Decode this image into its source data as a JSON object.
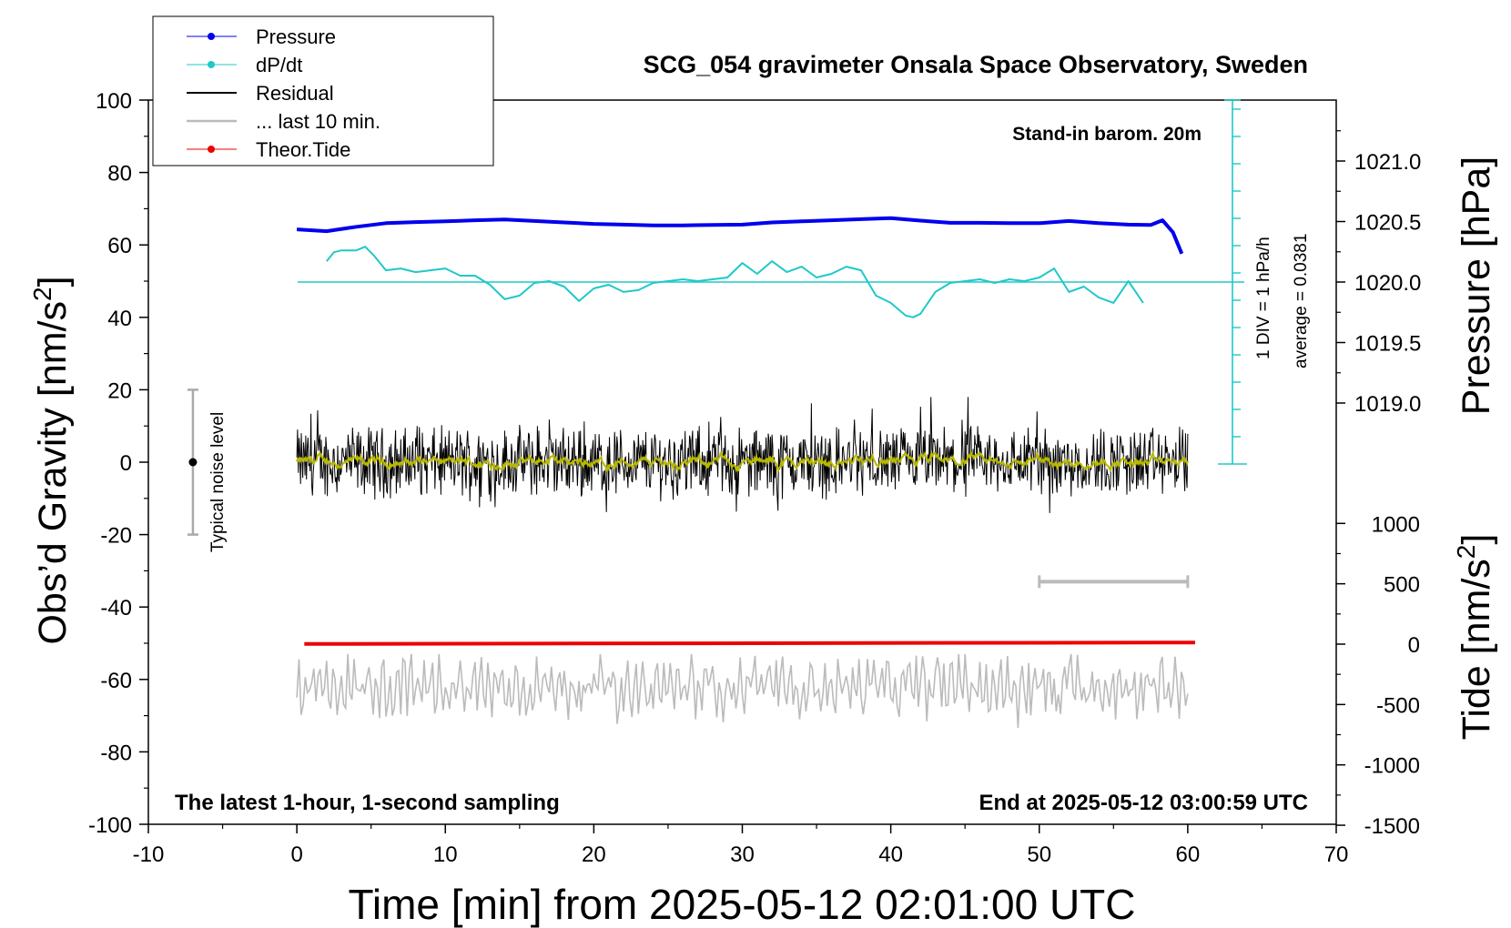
{
  "chart_data": {
    "type": "line",
    "title": "SCG_054 gravimeter Onsala Space Observatory, Sweden",
    "xlabel": "Time [min] from 2025-05-12 02:01:00 UTC",
    "ylabel_left": "Obs’d Gravity [nm/s",
    "ylabel_left_sup": "2",
    "ylabel_left_close": "]",
    "ylabel_right_pressure": "Pressure [hPa]",
    "ylabel_right_tide": "Tide [nm/s",
    "ylabel_right_tide_sup": "2",
    "ylabel_right_tide_close": "]",
    "xlim": [
      -10,
      70
    ],
    "ylim_left": [
      -100,
      100
    ],
    "x_ticks": [
      "-10",
      "0",
      "10",
      "20",
      "30",
      "40",
      "50",
      "60",
      "70"
    ],
    "y_ticks_left": [
      "-100",
      "-80",
      "-60",
      "-40",
      "-20",
      "0",
      "20",
      "40",
      "60",
      "80",
      "100"
    ],
    "pressure_ticks": [
      "1019.0",
      "1019.5",
      "1020.0",
      "1020.5",
      "1021.0"
    ],
    "tide_ticks": [
      "-1500",
      "-1000",
      "-500",
      "0",
      "500",
      "1000"
    ],
    "legend": {
      "placement": "top-left",
      "entries": [
        "Pressure",
        "dP/dt",
        "Residual",
        "... last 10 min.",
        "Theor.Tide"
      ]
    },
    "annotations": {
      "stand_in": "Stand-in barom. 20m",
      "latest": "The latest 1-hour, 1-second sampling",
      "end_at": "End at 2025-05-12 03:00:59 UTC",
      "div": "1 DIV = 1 hPa/h",
      "average": "average = 0.0381",
      "noise": "Typical noise level"
    },
    "colors": {
      "pressure": "#0000ee",
      "dpdt": "#20c8c8",
      "residual": "#000000",
      "residual_smooth": "#b8b800",
      "last10": "#bbbbbb",
      "tide": "#ee0000"
    },
    "series": [
      {
        "name": "Pressure",
        "x": [
          0,
          2,
          4,
          6,
          8,
          10,
          12,
          14,
          16,
          18,
          20,
          22,
          24,
          26,
          28,
          30,
          32,
          34,
          36,
          38,
          40,
          42,
          44,
          46,
          48,
          50,
          52,
          54,
          56,
          57.5,
          58.3,
          59,
          59.6
        ],
        "y": [
          64.3,
          63.8,
          65.0,
          66.0,
          66.3,
          66.5,
          66.8,
          67.0,
          66.6,
          66.2,
          65.8,
          65.6,
          65.4,
          65.4,
          65.5,
          65.6,
          66.2,
          66.5,
          66.8,
          67.1,
          67.4,
          66.7,
          66.1,
          66.1,
          66.0,
          66.0,
          66.6,
          66.0,
          65.6,
          65.5,
          66.8,
          63.5,
          57.6
        ]
      },
      {
        "name": "dP/dt",
        "x": [
          2,
          2.5,
          3,
          4,
          4.6,
          5.2,
          6,
          7,
          8,
          9,
          10,
          11,
          12,
          13,
          14,
          15,
          16,
          17,
          18,
          19,
          20,
          21,
          22,
          23,
          24,
          25,
          26,
          27,
          28,
          29,
          30,
          31,
          32,
          33,
          34,
          35,
          36,
          37,
          38,
          39,
          40,
          41,
          41.5,
          42,
          43,
          44,
          45,
          46,
          47,
          48,
          49,
          50,
          51,
          52,
          53,
          54,
          55,
          56,
          56.5,
          57
        ],
        "y": [
          55.5,
          58,
          58.5,
          58.5,
          59.5,
          57,
          53,
          53.5,
          52.5,
          53,
          53.5,
          51.5,
          51.5,
          49,
          45,
          46,
          49.5,
          50,
          48.5,
          44.5,
          48,
          49,
          47,
          47.5,
          49.5,
          50,
          50.5,
          50,
          50.5,
          51,
          55,
          52,
          55.5,
          52.5,
          54,
          51,
          52,
          54,
          53,
          46,
          44,
          40.5,
          40,
          41,
          47,
          49.5,
          50,
          50.5,
          49.5,
          50.5,
          50,
          51,
          53.5,
          47,
          48.5,
          45.5,
          44,
          50,
          47,
          44
        ]
      },
      {
        "name": "Residual",
        "x_range": [
          0,
          60
        ],
        "y_range": [
          -18,
          18
        ]
      },
      {
        "name": "... last 10 min.",
        "x_range": [
          0,
          60
        ],
        "y_range": [
          -78,
          -53
        ]
      },
      {
        "name": "Theor.Tide",
        "x": [
          0.5,
          60.5
        ],
        "y": [
          -50.2,
          -49.8
        ]
      }
    ],
    "noise_bar": {
      "x": -7,
      "y_low": -20,
      "y_high": 20,
      "center": 0
    },
    "last10_bar": {
      "x_start": 50,
      "x_end": 60,
      "y": -33
    }
  }
}
